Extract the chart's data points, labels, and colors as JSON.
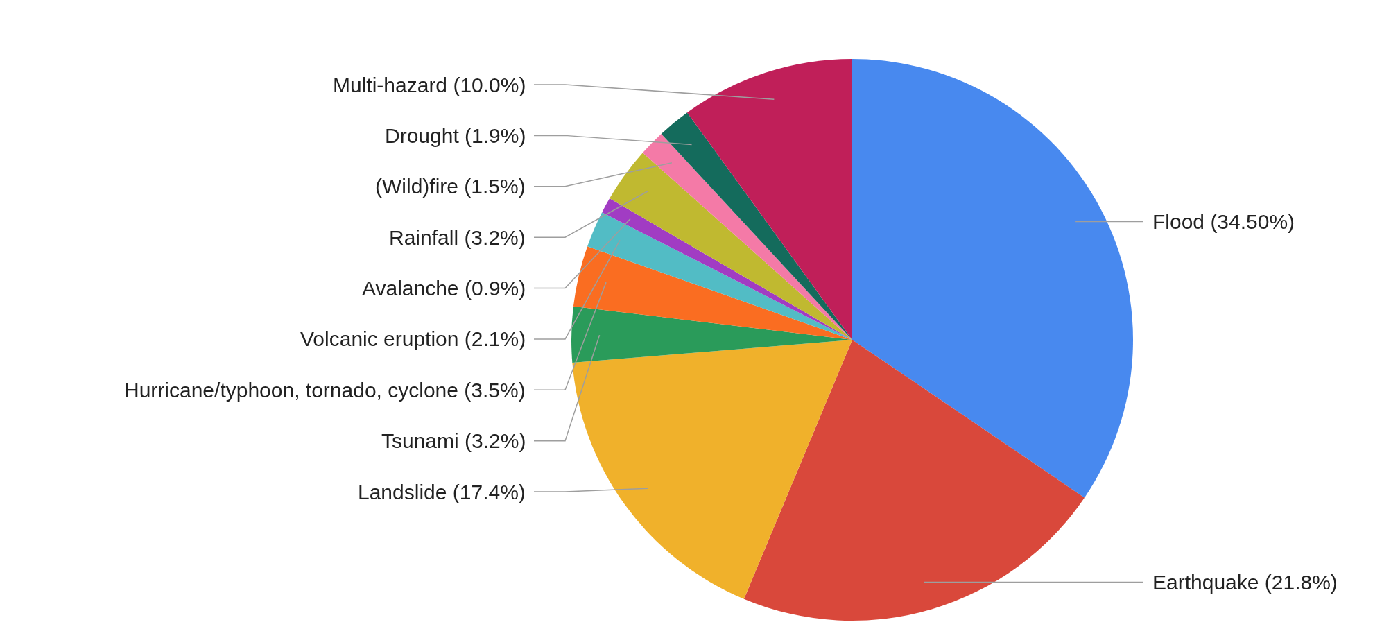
{
  "chart_data": {
    "type": "pie",
    "categories": [
      "Flood (34.50%)",
      "Earthquake (21.8%)",
      "Landslide (17.4%)",
      "Tsunami (3.2%)",
      "Hurricane/typhoon, tornado, cyclone (3.5%)",
      "Volcanic eruption (2.1%)",
      "Avalanche (0.9%)",
      "Rainfall (3.2%)",
      "(Wild)fire (1.5%)",
      "Drought (1.9%)",
      "Multi-hazard (10.0%)"
    ],
    "values": [
      34.5,
      21.8,
      17.4,
      3.2,
      3.5,
      2.1,
      0.9,
      3.2,
      1.5,
      1.9,
      10.0
    ],
    "colors": [
      "#4889ef",
      "#d9483b",
      "#f0b12b",
      "#2a9b5a",
      "#fa6d21",
      "#52bcc5",
      "#a13cc3",
      "#c0b930",
      "#f47aa7",
      "#146b5c",
      "#c01f59"
    ]
  }
}
